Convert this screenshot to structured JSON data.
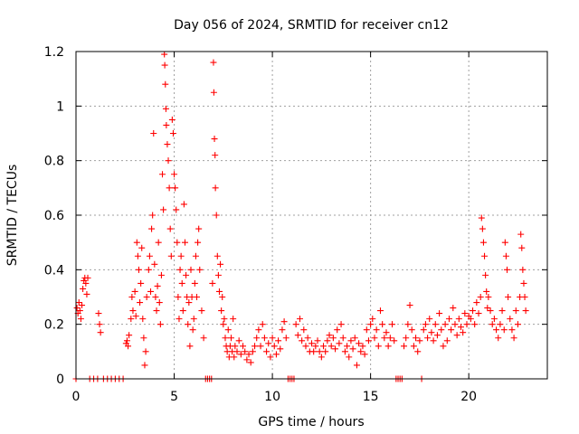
{
  "chart_data": {
    "type": "scatter",
    "title": "Day 056 of 2024, SRMTID for receiver cn12",
    "xlabel": "GPS time / hours",
    "ylabel": "SRMTID / TECUs",
    "xlim": [
      0,
      24
    ],
    "ylim": [
      0,
      1.2
    ],
    "xticks": [
      0,
      5,
      10,
      15,
      20
    ],
    "xtick_labels": [
      "0",
      "5",
      "10",
      "15",
      "20"
    ],
    "yticks": [
      0,
      0.2,
      0.4,
      0.6,
      0.8,
      1,
      1.2
    ],
    "ytick_labels": [
      "0",
      "0.2",
      "0.4",
      "0.6",
      "0.8",
      "1",
      "1.2"
    ],
    "grid": true,
    "marker": "plus",
    "color": "#ff0000",
    "series": [
      {
        "name": "cn12",
        "points": [
          [
            0.05,
            0.26
          ],
          [
            0.1,
            0.24
          ],
          [
            0.15,
            0.28
          ],
          [
            0.2,
            0.25
          ],
          [
            0.25,
            0.22
          ],
          [
            0.3,
            0.27
          ],
          [
            0.35,
            0.33
          ],
          [
            0.4,
            0.36
          ],
          [
            0.45,
            0.37
          ],
          [
            0.5,
            0.35
          ],
          [
            0.55,
            0.31
          ],
          [
            0.6,
            0.37
          ],
          [
            0.0,
            0.0
          ],
          [
            0.7,
            0.0
          ],
          [
            0.9,
            0.0
          ],
          [
            1.1,
            0.0
          ],
          [
            1.4,
            0.0
          ],
          [
            1.6,
            0.0
          ],
          [
            1.8,
            0.0
          ],
          [
            2.0,
            0.0
          ],
          [
            2.2,
            0.0
          ],
          [
            2.4,
            0.0
          ],
          [
            1.15,
            0.24
          ],
          [
            1.2,
            0.2
          ],
          [
            1.25,
            0.17
          ],
          [
            2.55,
            0.13
          ],
          [
            2.6,
            0.14
          ],
          [
            2.65,
            0.12
          ],
          [
            2.7,
            0.16
          ],
          [
            2.8,
            0.22
          ],
          [
            2.85,
            0.3
          ],
          [
            2.9,
            0.25
          ],
          [
            3.0,
            0.32
          ],
          [
            3.05,
            0.23
          ],
          [
            3.1,
            0.5
          ],
          [
            3.15,
            0.45
          ],
          [
            3.2,
            0.4
          ],
          [
            3.25,
            0.28
          ],
          [
            3.3,
            0.35
          ],
          [
            3.35,
            0.48
          ],
          [
            3.4,
            0.22
          ],
          [
            3.45,
            0.15
          ],
          [
            3.5,
            0.05
          ],
          [
            3.55,
            0.1
          ],
          [
            3.6,
            0.3
          ],
          [
            3.7,
            0.4
          ],
          [
            3.75,
            0.45
          ],
          [
            3.8,
            0.32
          ],
          [
            3.85,
            0.55
          ],
          [
            3.9,
            0.6
          ],
          [
            3.95,
            0.9
          ],
          [
            4.0,
            0.42
          ],
          [
            4.05,
            0.3
          ],
          [
            4.1,
            0.25
          ],
          [
            4.15,
            0.34
          ],
          [
            4.2,
            0.5
          ],
          [
            4.25,
            0.28
          ],
          [
            4.3,
            0.2
          ],
          [
            4.35,
            0.38
          ],
          [
            4.4,
            0.75
          ],
          [
            4.45,
            0.62
          ],
          [
            4.5,
            1.19
          ],
          [
            4.52,
            1.15
          ],
          [
            4.55,
            1.08
          ],
          [
            4.58,
            0.99
          ],
          [
            4.6,
            0.93
          ],
          [
            4.65,
            0.86
          ],
          [
            4.7,
            0.8
          ],
          [
            4.75,
            0.7
          ],
          [
            4.8,
            0.55
          ],
          [
            4.85,
            0.45
          ],
          [
            4.9,
            0.95
          ],
          [
            4.95,
            0.9
          ],
          [
            5.0,
            0.75
          ],
          [
            5.05,
            0.7
          ],
          [
            5.1,
            0.62
          ],
          [
            5.15,
            0.5
          ],
          [
            5.2,
            0.3
          ],
          [
            5.25,
            0.22
          ],
          [
            5.3,
            0.4
          ],
          [
            5.35,
            0.45
          ],
          [
            5.4,
            0.35
          ],
          [
            5.45,
            0.25
          ],
          [
            5.5,
            0.64
          ],
          [
            5.55,
            0.5
          ],
          [
            5.6,
            0.38
          ],
          [
            5.65,
            0.3
          ],
          [
            5.7,
            0.2
          ],
          [
            5.75,
            0.28
          ],
          [
            5.8,
            0.12
          ],
          [
            5.85,
            0.4
          ],
          [
            5.9,
            0.3
          ],
          [
            5.95,
            0.18
          ],
          [
            6.0,
            0.22
          ],
          [
            6.05,
            0.35
          ],
          [
            6.1,
            0.45
          ],
          [
            6.15,
            0.3
          ],
          [
            6.2,
            0.5
          ],
          [
            6.25,
            0.55
          ],
          [
            6.3,
            0.4
          ],
          [
            6.4,
            0.25
          ],
          [
            6.5,
            0.15
          ],
          [
            6.6,
            0.0
          ],
          [
            6.7,
            0.0
          ],
          [
            6.8,
            0.0
          ],
          [
            6.9,
            0.0
          ],
          [
            6.95,
            0.35
          ],
          [
            7.0,
            1.16
          ],
          [
            7.02,
            1.05
          ],
          [
            7.05,
            0.88
          ],
          [
            7.08,
            0.82
          ],
          [
            7.1,
            0.7
          ],
          [
            7.15,
            0.6
          ],
          [
            7.2,
            0.45
          ],
          [
            7.25,
            0.38
          ],
          [
            7.3,
            0.32
          ],
          [
            7.35,
            0.42
          ],
          [
            7.4,
            0.25
          ],
          [
            7.45,
            0.3
          ],
          [
            7.5,
            0.2
          ],
          [
            7.55,
            0.22
          ],
          [
            7.6,
            0.15
          ],
          [
            7.65,
            0.12
          ],
          [
            7.7,
            0.1
          ],
          [
            7.75,
            0.18
          ],
          [
            7.8,
            0.08
          ],
          [
            7.85,
            0.12
          ],
          [
            7.9,
            0.15
          ],
          [
            7.95,
            0.1
          ],
          [
            8.0,
            0.22
          ],
          [
            8.05,
            0.08
          ],
          [
            8.1,
            0.12
          ],
          [
            8.2,
            0.1
          ],
          [
            8.3,
            0.14
          ],
          [
            8.4,
            0.09
          ],
          [
            8.5,
            0.12
          ],
          [
            8.6,
            0.1
          ],
          [
            8.7,
            0.07
          ],
          [
            8.8,
            0.09
          ],
          [
            8.9,
            0.06
          ],
          [
            9.0,
            0.1
          ],
          [
            9.1,
            0.12
          ],
          [
            9.2,
            0.15
          ],
          [
            9.3,
            0.18
          ],
          [
            9.4,
            0.12
          ],
          [
            9.5,
            0.2
          ],
          [
            9.6,
            0.15
          ],
          [
            9.7,
            0.1
          ],
          [
            9.8,
            0.13
          ],
          [
            9.9,
            0.08
          ],
          [
            10.0,
            0.15
          ],
          [
            10.1,
            0.12
          ],
          [
            10.2,
            0.09
          ],
          [
            10.3,
            0.14
          ],
          [
            10.4,
            0.11
          ],
          [
            10.5,
            0.18
          ],
          [
            10.6,
            0.21
          ],
          [
            10.7,
            0.15
          ],
          [
            10.8,
            0.0
          ],
          [
            10.9,
            0.0
          ],
          [
            11.0,
            0.0
          ],
          [
            11.1,
            0.0
          ],
          [
            11.2,
            0.2
          ],
          [
            11.3,
            0.16
          ],
          [
            11.4,
            0.22
          ],
          [
            11.5,
            0.14
          ],
          [
            11.6,
            0.18
          ],
          [
            11.7,
            0.12
          ],
          [
            11.8,
            0.15
          ],
          [
            11.9,
            0.1
          ],
          [
            12.0,
            0.13
          ],
          [
            12.1,
            0.1
          ],
          [
            12.2,
            0.12
          ],
          [
            12.3,
            0.14
          ],
          [
            12.4,
            0.1
          ],
          [
            12.5,
            0.08
          ],
          [
            12.6,
            0.12
          ],
          [
            12.7,
            0.1
          ],
          [
            12.8,
            0.14
          ],
          [
            12.9,
            0.16
          ],
          [
            13.0,
            0.12
          ],
          [
            13.1,
            0.15
          ],
          [
            13.2,
            0.11
          ],
          [
            13.3,
            0.18
          ],
          [
            13.4,
            0.13
          ],
          [
            13.5,
            0.2
          ],
          [
            13.6,
            0.15
          ],
          [
            13.7,
            0.1
          ],
          [
            13.8,
            0.12
          ],
          [
            13.9,
            0.08
          ],
          [
            14.0,
            0.14
          ],
          [
            14.1,
            0.11
          ],
          [
            14.2,
            0.15
          ],
          [
            14.3,
            0.05
          ],
          [
            14.4,
            0.13
          ],
          [
            14.5,
            0.1
          ],
          [
            14.6,
            0.12
          ],
          [
            14.7,
            0.09
          ],
          [
            14.8,
            0.18
          ],
          [
            14.9,
            0.14
          ],
          [
            15.0,
            0.2
          ],
          [
            15.1,
            0.22
          ],
          [
            15.2,
            0.15
          ],
          [
            15.3,
            0.18
          ],
          [
            15.4,
            0.12
          ],
          [
            15.5,
            0.25
          ],
          [
            15.6,
            0.2
          ],
          [
            15.7,
            0.15
          ],
          [
            15.8,
            0.17
          ],
          [
            15.9,
            0.12
          ],
          [
            16.0,
            0.15
          ],
          [
            16.1,
            0.2
          ],
          [
            16.2,
            0.14
          ],
          [
            16.3,
            0.0
          ],
          [
            16.4,
            0.0
          ],
          [
            16.5,
            0.0
          ],
          [
            16.6,
            0.0
          ],
          [
            17.6,
            0.0
          ],
          [
            16.7,
            0.12
          ],
          [
            16.8,
            0.15
          ],
          [
            16.9,
            0.2
          ],
          [
            17.0,
            0.27
          ],
          [
            17.1,
            0.18
          ],
          [
            17.2,
            0.12
          ],
          [
            17.3,
            0.15
          ],
          [
            17.4,
            0.1
          ],
          [
            17.5,
            0.14
          ],
          [
            17.7,
            0.18
          ],
          [
            17.8,
            0.2
          ],
          [
            17.9,
            0.15
          ],
          [
            18.0,
            0.22
          ],
          [
            18.1,
            0.17
          ],
          [
            18.2,
            0.14
          ],
          [
            18.3,
            0.2
          ],
          [
            18.4,
            0.16
          ],
          [
            18.5,
            0.24
          ],
          [
            18.6,
            0.18
          ],
          [
            18.7,
            0.12
          ],
          [
            18.8,
            0.2
          ],
          [
            18.9,
            0.14
          ],
          [
            19.0,
            0.22
          ],
          [
            19.1,
            0.18
          ],
          [
            19.2,
            0.26
          ],
          [
            19.3,
            0.2
          ],
          [
            19.4,
            0.16
          ],
          [
            19.5,
            0.22
          ],
          [
            19.6,
            0.19
          ],
          [
            19.7,
            0.17
          ],
          [
            19.8,
            0.24
          ],
          [
            19.9,
            0.2
          ],
          [
            20.0,
            0.23
          ],
          [
            20.1,
            0.22
          ],
          [
            20.2,
            0.25
          ],
          [
            20.3,
            0.2
          ],
          [
            20.4,
            0.28
          ],
          [
            20.5,
            0.24
          ],
          [
            20.6,
            0.3
          ],
          [
            20.65,
            0.59
          ],
          [
            20.7,
            0.55
          ],
          [
            20.75,
            0.5
          ],
          [
            20.8,
            0.45
          ],
          [
            20.85,
            0.38
          ],
          [
            20.9,
            0.32
          ],
          [
            20.95,
            0.26
          ],
          [
            21.0,
            0.3
          ],
          [
            21.1,
            0.25
          ],
          [
            21.2,
            0.2
          ],
          [
            21.3,
            0.22
          ],
          [
            21.4,
            0.18
          ],
          [
            21.5,
            0.15
          ],
          [
            21.6,
            0.2
          ],
          [
            21.7,
            0.25
          ],
          [
            21.8,
            0.18
          ],
          [
            21.85,
            0.5
          ],
          [
            21.9,
            0.45
          ],
          [
            21.95,
            0.4
          ],
          [
            22.0,
            0.3
          ],
          [
            22.1,
            0.22
          ],
          [
            22.2,
            0.18
          ],
          [
            22.3,
            0.15
          ],
          [
            22.4,
            0.25
          ],
          [
            22.5,
            0.2
          ],
          [
            22.6,
            0.3
          ],
          [
            22.65,
            0.53
          ],
          [
            22.7,
            0.48
          ],
          [
            22.75,
            0.4
          ],
          [
            22.8,
            0.35
          ],
          [
            22.85,
            0.3
          ],
          [
            22.9,
            0.25
          ]
        ]
      }
    ]
  }
}
